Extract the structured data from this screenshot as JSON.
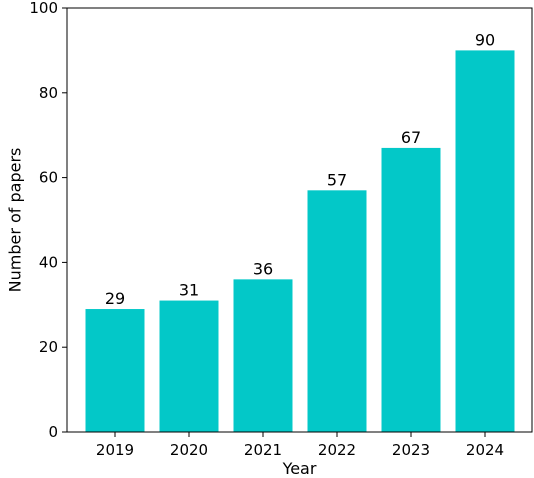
{
  "chart_data": {
    "type": "bar",
    "title": "",
    "xlabel": "Year",
    "ylabel": "Number of papers",
    "categories": [
      "2019",
      "2020",
      "2021",
      "2022",
      "2023",
      "2024"
    ],
    "values": [
      29,
      31,
      36,
      57,
      67,
      90
    ],
    "data_labels": [
      "29",
      "31",
      "36",
      "57",
      "67",
      "90"
    ],
    "ylim": [
      0,
      100
    ],
    "yticks": [
      0,
      20,
      40,
      60,
      80,
      100
    ],
    "ytick_labels": [
      "0",
      "20",
      "40",
      "60",
      "80",
      "100"
    ],
    "grid": false,
    "legend": "none",
    "bar_color": "#03c8c8"
  }
}
